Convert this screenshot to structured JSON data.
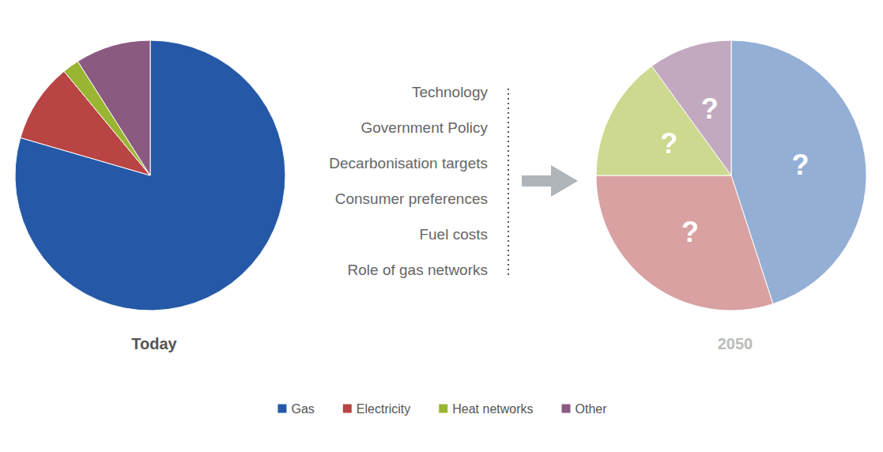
{
  "chart_data": [
    {
      "type": "pie",
      "title": "Today",
      "categories": [
        "Gas",
        "Electricity",
        "Heat networks",
        "Other"
      ],
      "values": [
        79.5,
        9.5,
        2,
        9
      ],
      "colors": [
        "#2559a7",
        "#b94444",
        "#99b531",
        "#8a5a80"
      ],
      "legend": "bottom",
      "data_labels": false
    },
    {
      "type": "pie",
      "title": "2050",
      "categories": [
        "Gas",
        "Electricity",
        "Heat networks",
        "Other"
      ],
      "values": [
        45,
        30,
        15,
        10
      ],
      "value_labels": [
        "?",
        "?",
        "?",
        "?"
      ],
      "colors": [
        "#94afd5",
        "#d9a1a1",
        "#ccd98e",
        "#c3a9bf"
      ],
      "data_labels": true,
      "annotations": [
        "Technology",
        "Government Policy",
        "Decarbonisation targets",
        "Consumer preferences",
        "Fuel costs",
        "Role of gas networks"
      ]
    }
  ]
}
